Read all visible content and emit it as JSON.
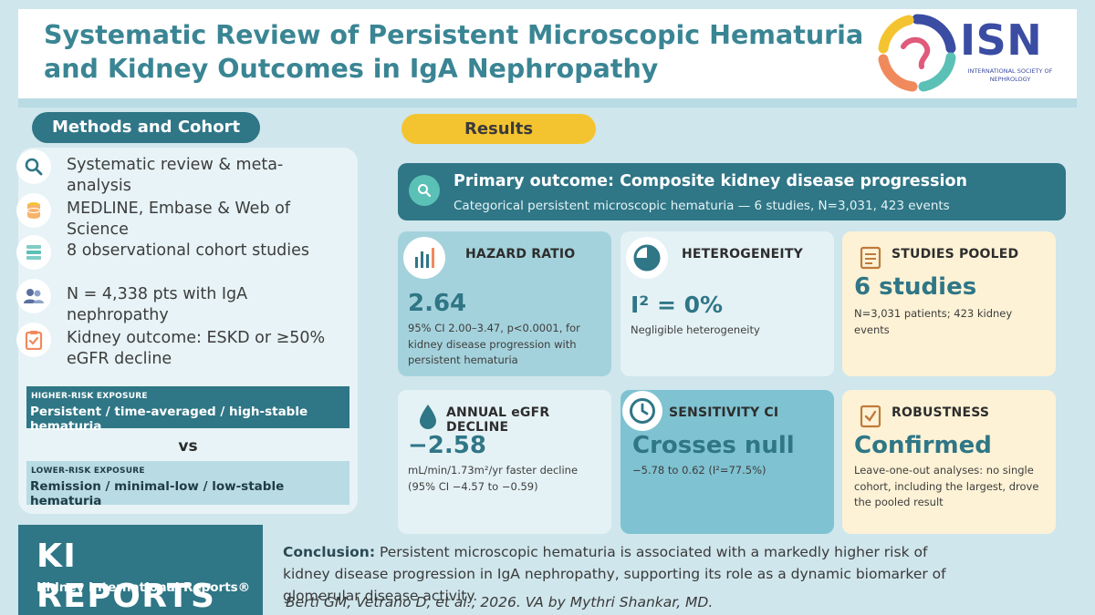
{
  "header": {
    "title": "Systematic Review of Persistent Microscopic Hematuria and Kidney Outcomes in IgA Nephropathy",
    "logo_name": "ISN",
    "logo_subtitle": "INTERNATIONAL SOCIETY OF NEPHROLOGY"
  },
  "methods": {
    "pill": "Methods and Cohort",
    "items": [
      {
        "icon": "search-icon",
        "text": "Systematic review & meta-analysis"
      },
      {
        "icon": "database-icon",
        "text": "MEDLINE, Embase & Web of Science"
      },
      {
        "icon": "layers-icon",
        "text": "8 observational cohort studies"
      },
      {
        "icon": "people-icon",
        "text": "N = 4,338 pts with IgA nephropathy"
      },
      {
        "icon": "clipboard-check-icon",
        "text": "Kidney outcome: ESKD or ≥50% eGFR decline"
      }
    ],
    "higher_risk_caption": "HIGHER-RISK EXPOSURE",
    "higher_risk_text": "Persistent / time-averaged / high-stable hematuria",
    "vs": "vs",
    "lower_risk_caption": "LOWER-RISK EXPOSURE",
    "lower_risk_text": "Remission / minimal-low / low-stable hematuria"
  },
  "results": {
    "pill": "Results",
    "primary_title": "Primary outcome: Composite kidney disease progression",
    "primary_subtitle": "Categorical persistent microscopic hematuria — 6 studies, N=3,031, 423 events",
    "cards": [
      {
        "icon": "bar-chart-icon",
        "label": "HAZARD RATIO",
        "value": "2.64",
        "desc": "95% CI 2.00–3.47, p<0.0001, for kidney disease progression with persistent hematuria"
      },
      {
        "icon": "pie-chart-icon",
        "label": "HETEROGENEITY",
        "value": "I² = 0%",
        "desc": "Negligible heterogeneity"
      },
      {
        "icon": "document-icon",
        "label": "STUDIES POOLED",
        "value": "6 studies",
        "desc": "N=3,031 patients; 423 kidney events"
      },
      {
        "icon": "droplet-icon",
        "label": "ANNUAL eGFR DECLINE",
        "value": "−2.58",
        "desc": "mL/min/1.73m²/yr faster decline (95% CI −4.57 to −0.59)"
      },
      {
        "icon": "clock-icon",
        "label": "SENSITIVITY CI",
        "value": "Crosses null",
        "desc": "−5.78 to 0.62 (I²=77.5%)"
      },
      {
        "icon": "checkbox-icon",
        "label": "ROBUSTNESS",
        "value": "Confirmed",
        "desc": "Leave-one-out analyses: no single cohort, including the largest, drove the pooled result"
      }
    ]
  },
  "footer": {
    "journal_big": "KI REPORTS",
    "journal_small": "Kidney International Reports®",
    "conclusion_label": "Conclusion:",
    "conclusion_text": " Persistent microscopic hematuria is associated with a markedly higher risk of kidney disease progression in IgA nephropathy, supporting its role as a dynamic biomarker of glomerular disease activity.",
    "citation": "Berti GM, Vetrano D, et al., 2026. VA by Mythri Shankar, MD."
  },
  "colors": {
    "brand_teal": "#2f7686",
    "accent_yellow": "#f4c430",
    "icon_orange": "#f08a5d",
    "icon_teal": "#5bc0b5",
    "isn_blue": "#3b4ca3"
  }
}
